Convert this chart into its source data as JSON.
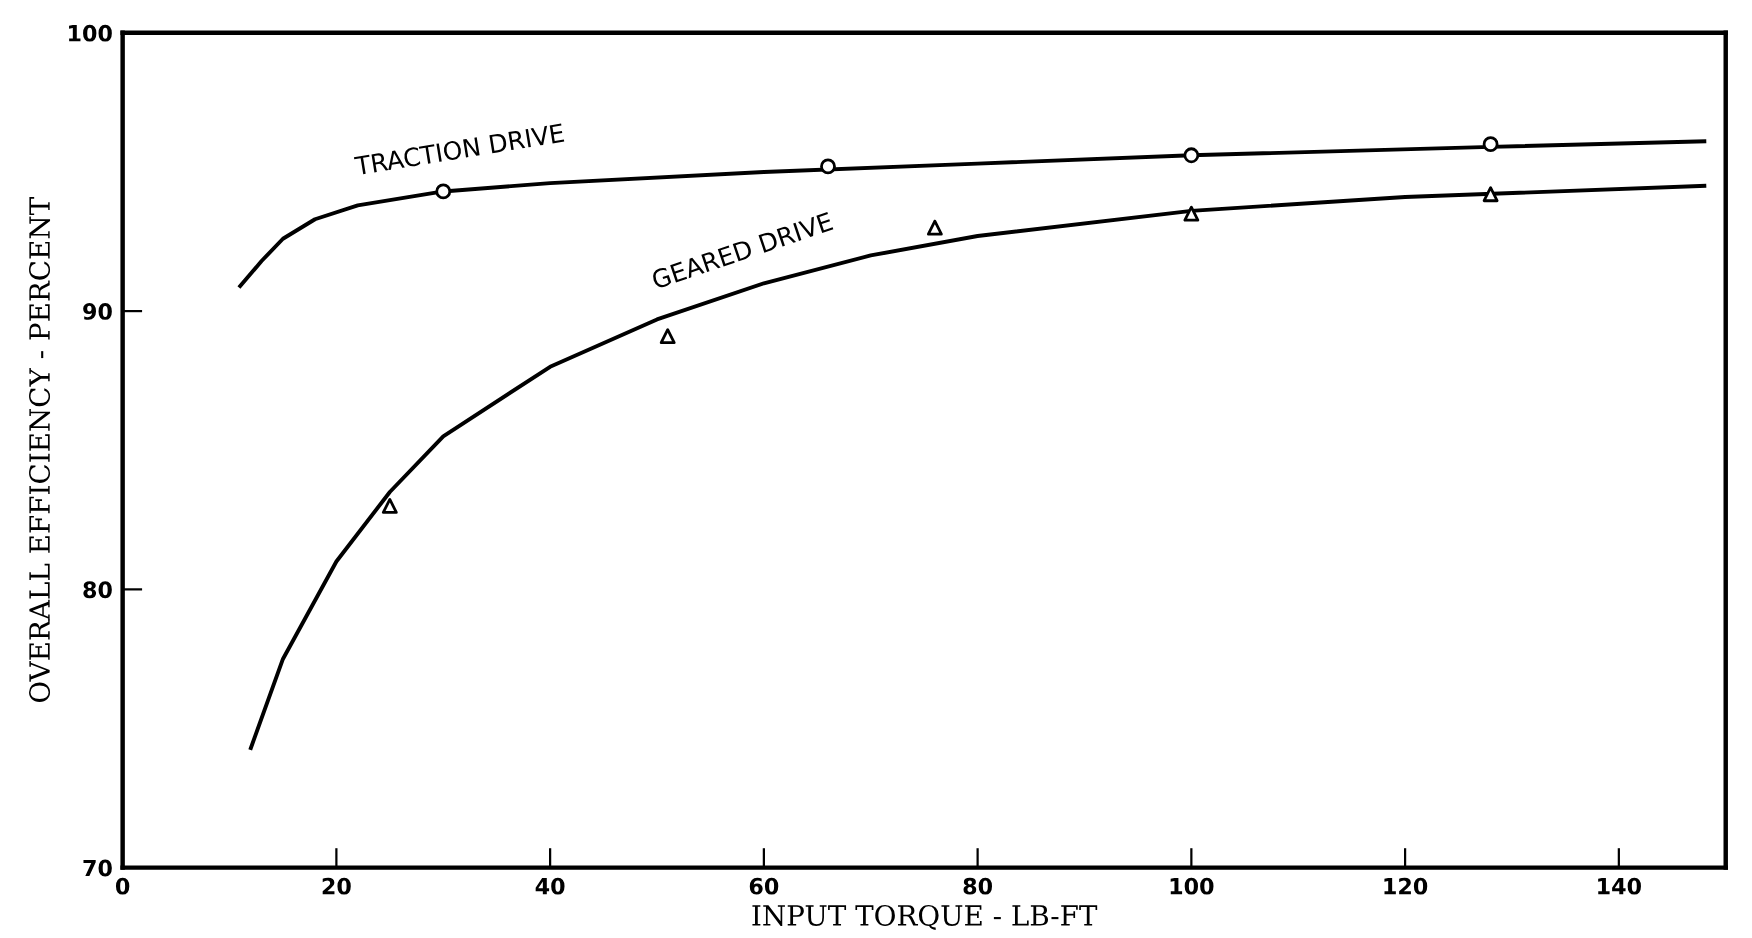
{
  "chart_data": {
    "type": "line",
    "xlabel": "INPUT TORQUE - LB-FT",
    "ylabel": "OVERALL EFFICIENCY - PERCENT",
    "xlim": [
      0,
      150
    ],
    "ylim": [
      70,
      100
    ],
    "xticks": [
      0,
      20,
      40,
      60,
      80,
      100,
      120,
      140
    ],
    "yticks": [
      70,
      80,
      90,
      100
    ],
    "grid": false,
    "legend": false,
    "series": [
      {
        "name": "TRACTION DRIVE",
        "color": "#000000",
        "marker": "none",
        "line_style": "solid",
        "x": [
          11,
          13,
          15,
          18,
          22,
          30,
          40,
          60,
          80,
          100,
          128,
          148
        ],
        "values": [
          90.9,
          91.8,
          92.6,
          93.3,
          93.8,
          94.3,
          94.6,
          95.0,
          95.3,
          95.6,
          95.9,
          96.1
        ]
      },
      {
        "name": "GEARED DRIVE",
        "color": "#000000",
        "marker": "none",
        "line_style": "solid",
        "x": [
          12,
          15,
          20,
          25,
          30,
          40,
          50,
          60,
          70,
          80,
          100,
          120,
          148
        ],
        "values": [
          74.3,
          77.5,
          81.0,
          83.5,
          85.5,
          88.0,
          89.7,
          91.0,
          92.0,
          92.7,
          93.6,
          94.1,
          94.5
        ]
      },
      {
        "type": "scatter",
        "color": "#000000",
        "marker": "circle",
        "x": [
          30,
          66,
          100,
          128
        ],
        "values": [
          94.3,
          95.2,
          95.6,
          96.0
        ]
      },
      {
        "type": "scatter",
        "color": "#000000",
        "marker": "triangle",
        "x": [
          25,
          51,
          76,
          100,
          128
        ],
        "values": [
          83.0,
          89.1,
          93.0,
          93.5,
          94.2
        ]
      }
    ]
  }
}
